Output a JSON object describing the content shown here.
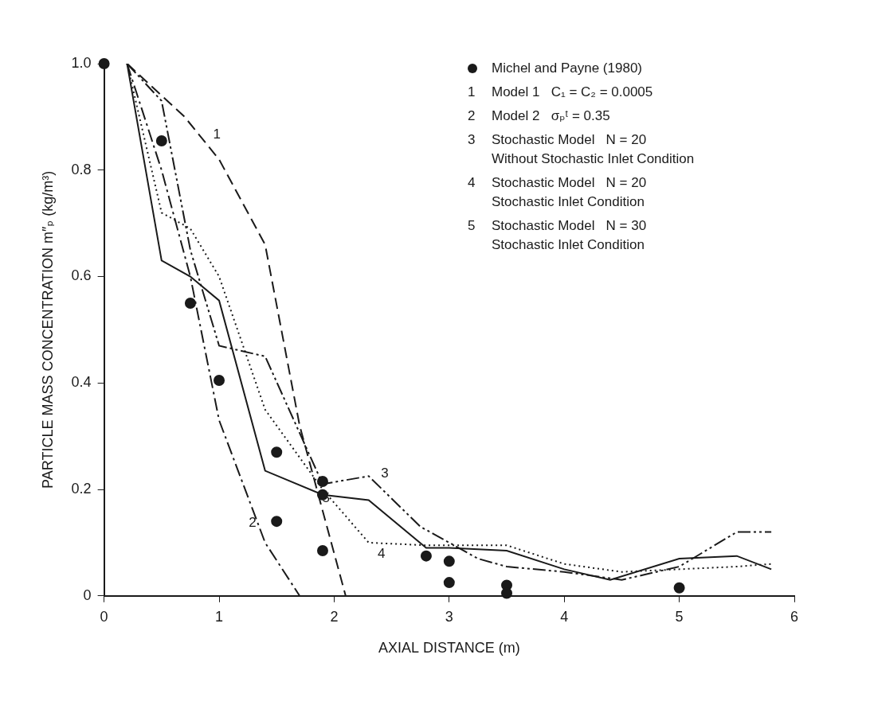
{
  "chart_data": {
    "type": "line",
    "x_label": "AXIAL DISTANCE (m)",
    "y_label": "PARTICLE MASS CONCENTRATION m″ₚ (kg/m³)",
    "xlim": [
      0,
      6
    ],
    "xticks": [
      0,
      1,
      2,
      3,
      4,
      5,
      6
    ],
    "ylim": [
      0,
      1
    ],
    "yticks": [
      0,
      0.2,
      0.4,
      0.6,
      0.8,
      {
        "value": 1,
        "label": "1.0"
      }
    ],
    "grid": false,
    "legend": "upper right",
    "series": [
      {
        "name": "Michel and Payne (1980)",
        "color": "#1a1a1a",
        "type": "scatter",
        "marker": "circle",
        "line_style": "none",
        "x": [
          0,
          0.5,
          0.75,
          1.0,
          1.5,
          1.5,
          1.9,
          1.9,
          1.9,
          2.8,
          3.0,
          3.0,
          3.5,
          3.5,
          5.0
        ],
        "values": [
          1.0,
          0.855,
          0.55,
          0.405,
          0.27,
          0.14,
          0.215,
          0.19,
          0.085,
          0.075,
          0.065,
          0.025,
          0.02,
          0.005,
          0.015
        ]
      },
      {
        "name": "1  Model 1   C₁ = C₂ = 0.0005",
        "color": "#1a1a1a",
        "type": "line",
        "marker": "none",
        "line_style": "dashed",
        "x": [
          0.2,
          0.7,
          1.0,
          1.4,
          1.7,
          2.1
        ],
        "values": [
          1.0,
          0.9,
          0.82,
          0.66,
          0.32,
          0
        ]
      },
      {
        "name": "2  Model 2   σₚᵗ = 0.35",
        "color": "#1a1a1a",
        "type": "line",
        "marker": "none",
        "line_style": "dashdot",
        "x": [
          0.2,
          0.5,
          0.75,
          1.0,
          1.4,
          1.7
        ],
        "values": [
          1.0,
          0.8,
          0.6,
          0.33,
          0.1,
          0
        ]
      },
      {
        "name": "3  Stochastic Model   N = 20\nWithout Stochastic Inlet Condition",
        "color": "#1a1a1a",
        "type": "line",
        "marker": "none",
        "line_style": "dashdotdot",
        "x": [
          0.2,
          0.5,
          0.75,
          1.0,
          1.4,
          1.9,
          2.3,
          2.75,
          3.25,
          3.5,
          4.0,
          4.5,
          5.0,
          5.5,
          5.8
        ],
        "values": [
          1.0,
          0.93,
          0.65,
          0.47,
          0.45,
          0.21,
          0.225,
          0.13,
          0.07,
          0.055,
          0.045,
          0.03,
          0.055,
          0.12,
          0.12
        ]
      },
      {
        "name": "4  Stochastic Model   N = 20\nStochastic Inlet Condition",
        "color": "#1a1a1a",
        "type": "line",
        "marker": "none",
        "line_style": "dotted",
        "x": [
          0.2,
          0.5,
          0.75,
          1.0,
          1.4,
          1.9,
          2.3,
          2.8,
          3.5,
          4.0,
          4.5,
          5.0,
          5.5,
          5.8
        ],
        "values": [
          1.0,
          0.72,
          0.69,
          0.6,
          0.35,
          0.2,
          0.1,
          0.095,
          0.095,
          0.06,
          0.045,
          0.05,
          0.055,
          0.06
        ]
      },
      {
        "name": "5  Stochastic Model   N = 30\nStochastic Inlet Condition",
        "color": "#1a1a1a",
        "type": "line",
        "marker": "none",
        "line_style": "solid",
        "x": [
          0.2,
          0.5,
          0.75,
          1.0,
          1.4,
          1.9,
          2.3,
          2.8,
          3.0,
          3.5,
          4.0,
          4.4,
          5.0,
          5.5,
          5.8
        ],
        "values": [
          1.0,
          0.63,
          0.6,
          0.555,
          0.235,
          0.19,
          0.18,
          0.09,
          0.09,
          0.085,
          0.05,
          0.03,
          0.07,
          0.075,
          0.05
        ]
      }
    ],
    "annotations": [
      {
        "text": "1",
        "x": 0.98,
        "y": 0.866
      },
      {
        "text": "2",
        "x": 1.29,
        "y": 0.137
      },
      {
        "text": "3",
        "x": 2.44,
        "y": 0.23
      },
      {
        "text": "4",
        "x": 2.41,
        "y": 0.079
      },
      {
        "text": "5",
        "x": 1.93,
        "y": 0.183
      }
    ]
  }
}
